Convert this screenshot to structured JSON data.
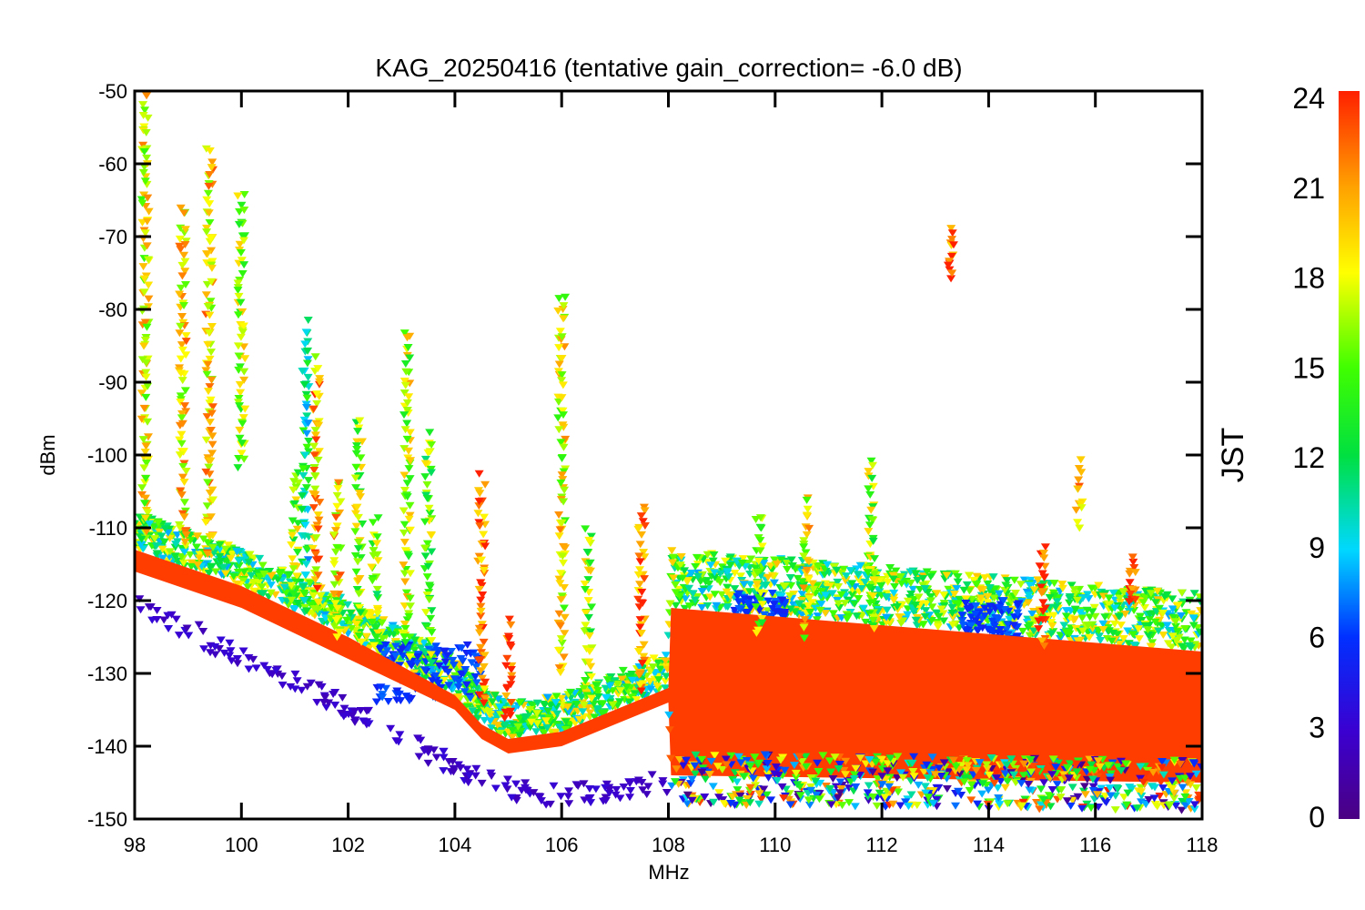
{
  "chart_data": {
    "type": "scatter",
    "title": "KAG_20250416 (tentative gain_correction= -6.0 dB)",
    "xlabel": "MHz",
    "ylabel": "dBm",
    "xlim": [
      98,
      118
    ],
    "ylim": [
      -150,
      -50
    ],
    "x_ticks": [
      "98",
      "100",
      "102",
      "104",
      "106",
      "108",
      "110",
      "112",
      "114",
      "116",
      "118"
    ],
    "y_ticks": [
      "-50",
      "-60",
      "-70",
      "-80",
      "-90",
      "-100",
      "-110",
      "-120",
      "-130",
      "-140",
      "-150"
    ],
    "grid": false,
    "colorbar": {
      "label": "JST",
      "range": [
        0,
        24
      ],
      "ticks": [
        "24",
        "21",
        "18",
        "15",
        "12",
        "9",
        "6",
        "3",
        "0"
      ]
    },
    "noise_floor": {
      "x": [
        98,
        100,
        102,
        104,
        104.5,
        105,
        106,
        107,
        108,
        108.05,
        118
      ],
      "upper": [
        -113,
        -118,
        -125,
        -133,
        -137,
        -139,
        -138,
        -135,
        -132,
        -121,
        -127
      ],
      "lower": [
        -116,
        -121,
        -128,
        -135,
        -139,
        -141,
        -140,
        -137,
        -134,
        -144,
        -145
      ]
    },
    "signals": [
      {
        "x": 98.2,
        "top": -50,
        "bottom": -112,
        "hour": 18
      },
      {
        "x": 98.9,
        "top": -67,
        "bottom": -114,
        "hour": 19
      },
      {
        "x": 99.4,
        "top": -59,
        "bottom": -115,
        "hour": 19
      },
      {
        "x": 100.0,
        "top": -65,
        "bottom": -103,
        "hour": 17
      },
      {
        "x": 101.0,
        "top": -103,
        "bottom": -122,
        "hour": 16
      },
      {
        "x": 101.2,
        "top": -83,
        "bottom": -122,
        "hour": 11
      },
      {
        "x": 101.4,
        "top": -88,
        "bottom": -123,
        "hour": 20
      },
      {
        "x": 101.8,
        "top": -104,
        "bottom": -126,
        "hour": 19
      },
      {
        "x": 102.2,
        "top": -96,
        "bottom": -127,
        "hour": 16
      },
      {
        "x": 102.5,
        "top": -110,
        "bottom": -128,
        "hour": 15
      },
      {
        "x": 103.1,
        "top": -84,
        "bottom": -129,
        "hour": 17
      },
      {
        "x": 103.5,
        "top": -98,
        "bottom": -130,
        "hour": 15
      },
      {
        "x": 104.5,
        "top": -104,
        "bottom": -136,
        "hour": 22
      },
      {
        "x": 105.0,
        "top": -124,
        "bottom": -138,
        "hour": 24
      },
      {
        "x": 106.0,
        "top": -79,
        "bottom": -131,
        "hour": 18
      },
      {
        "x": 106.5,
        "top": -111,
        "bottom": -135,
        "hour": 16
      },
      {
        "x": 107.5,
        "top": -108,
        "bottom": -134,
        "hour": 22
      },
      {
        "x": 109.7,
        "top": -109,
        "bottom": -126,
        "hour": 16
      },
      {
        "x": 110.6,
        "top": -107,
        "bottom": -126,
        "hour": 18
      },
      {
        "x": 111.8,
        "top": -102,
        "bottom": -125,
        "hour": 16
      },
      {
        "x": 113.3,
        "top": -70,
        "bottom": -77,
        "hour": 23
      },
      {
        "x": 115.0,
        "top": -113,
        "bottom": -128,
        "hour": 24
      },
      {
        "x": 115.7,
        "top": -102,
        "bottom": -111,
        "hour": 21
      },
      {
        "x": 116.7,
        "top": -115,
        "bottom": -122,
        "hour": 24
      }
    ],
    "night_curve": {
      "hour": 2,
      "x": [
        98,
        99,
        100,
        101,
        102,
        103,
        104,
        105,
        106,
        107,
        108
      ],
      "y": [
        -121,
        -124,
        -128,
        -131,
        -135,
        -139,
        -143,
        -146,
        -147,
        -146,
        -145
      ]
    },
    "blue_clusters": [
      {
        "x": [
          109.2,
          110.2
        ],
        "y": [
          -127,
          -119
        ],
        "hour": 5
      },
      {
        "x": [
          113.5,
          114.6
        ],
        "y": [
          -128,
          -120
        ],
        "hour": 5
      },
      {
        "x": [
          102.5,
          104.5
        ],
        "y": [
          -134,
          -126
        ],
        "hour": 5
      }
    ]
  }
}
